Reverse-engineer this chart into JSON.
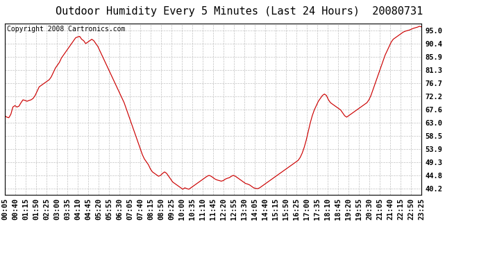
{
  "title": "Outdoor Humidity Every 5 Minutes (Last 24 Hours)  20080731",
  "copyright": "Copyright 2008 Cartronics.com",
  "line_color": "#cc0000",
  "bg_color": "#ffffff",
  "plot_bg_color": "#ffffff",
  "grid_color": "#c0c0c0",
  "yticks": [
    40.2,
    44.8,
    49.3,
    53.9,
    58.5,
    63.0,
    67.6,
    72.2,
    76.7,
    81.3,
    85.9,
    90.4,
    95.0
  ],
  "ylim": [
    38.0,
    97.5
  ],
  "title_fontsize": 11,
  "copyright_fontsize": 7,
  "tick_fontsize": 7.5,
  "xtick_labels": [
    "00:05",
    "00:40",
    "01:15",
    "01:50",
    "02:25",
    "03:00",
    "03:35",
    "04:10",
    "04:45",
    "05:20",
    "05:55",
    "06:30",
    "07:05",
    "07:40",
    "08:15",
    "08:50",
    "09:25",
    "10:00",
    "10:35",
    "11:10",
    "11:45",
    "12:20",
    "12:55",
    "13:30",
    "14:05",
    "14:40",
    "15:15",
    "15:50",
    "16:25",
    "17:00",
    "17:35",
    "18:10",
    "18:45",
    "19:20",
    "19:55",
    "20:30",
    "21:05",
    "21:40",
    "22:15",
    "22:50",
    "23:25"
  ],
  "humidity_values": [
    65.5,
    65.0,
    64.8,
    66.0,
    68.5,
    69.0,
    68.5,
    68.8,
    70.0,
    71.0,
    70.8,
    70.5,
    70.8,
    71.0,
    71.5,
    72.5,
    74.0,
    75.5,
    76.0,
    76.5,
    77.0,
    77.5,
    78.0,
    79.0,
    80.5,
    82.0,
    83.0,
    84.0,
    85.5,
    86.5,
    87.5,
    88.5,
    89.5,
    90.5,
    91.5,
    92.5,
    92.8,
    93.0,
    92.0,
    91.5,
    90.5,
    91.0,
    91.5,
    92.0,
    91.5,
    90.5,
    89.5,
    88.0,
    86.5,
    85.0,
    83.5,
    82.0,
    80.5,
    79.0,
    77.5,
    76.0,
    74.5,
    73.0,
    71.5,
    70.0,
    68.0,
    66.0,
    64.0,
    62.0,
    60.0,
    58.0,
    56.0,
    54.0,
    52.0,
    50.5,
    49.5,
    48.5,
    47.0,
    46.0,
    45.5,
    45.0,
    44.5,
    44.8,
    45.5,
    46.0,
    45.5,
    44.5,
    43.5,
    42.5,
    42.0,
    41.5,
    41.0,
    40.5,
    40.0,
    40.5,
    40.2,
    40.0,
    40.5,
    41.0,
    41.5,
    42.0,
    42.5,
    43.0,
    43.5,
    44.0,
    44.5,
    44.8,
    44.5,
    44.0,
    43.5,
    43.2,
    43.0,
    42.8,
    43.0,
    43.5,
    43.8,
    44.0,
    44.5,
    44.8,
    44.5,
    44.0,
    43.5,
    43.0,
    42.5,
    42.0,
    41.8,
    41.5,
    41.0,
    40.5,
    40.3,
    40.2,
    40.5,
    41.0,
    41.5,
    42.0,
    42.5,
    43.0,
    43.5,
    44.0,
    44.5,
    45.0,
    45.5,
    46.0,
    46.5,
    47.0,
    47.5,
    48.0,
    48.5,
    49.0,
    49.5,
    50.0,
    51.0,
    52.5,
    54.5,
    57.0,
    60.0,
    63.0,
    65.5,
    67.5,
    69.0,
    70.5,
    71.5,
    72.5,
    73.0,
    72.5,
    71.0,
    70.0,
    69.5,
    69.0,
    68.5,
    68.0,
    67.5,
    66.5,
    65.5,
    65.0,
    65.5,
    66.0,
    66.5,
    67.0,
    67.5,
    68.0,
    68.5,
    69.0,
    69.5,
    70.0,
    71.0,
    72.5,
    74.5,
    76.5,
    78.5,
    80.5,
    82.5,
    84.5,
    86.5,
    88.0,
    89.5,
    91.0,
    92.0,
    92.5,
    93.0,
    93.5,
    94.0,
    94.5,
    94.8,
    95.0,
    95.2,
    95.5,
    95.8,
    96.0,
    96.2,
    96.5,
    96.3
  ]
}
